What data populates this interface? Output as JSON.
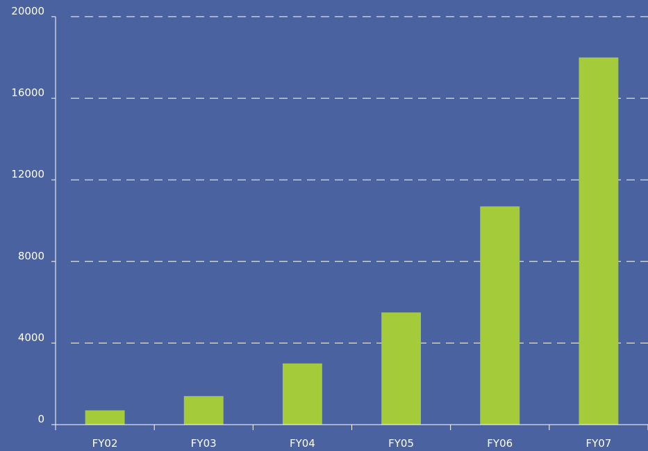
{
  "chart_data": {
    "type": "bar",
    "categories": [
      "FY02",
      "FY03",
      "FY04",
      "FY05",
      "FY06",
      "FY07"
    ],
    "values": [
      700,
      1400,
      3000,
      5500,
      10700,
      18000
    ],
    "color": "#a4cb3a",
    "ylim": [
      0,
      20000
    ],
    "yticks": [
      0,
      4000,
      8000,
      12000,
      16000,
      20000
    ],
    "grid": true
  }
}
